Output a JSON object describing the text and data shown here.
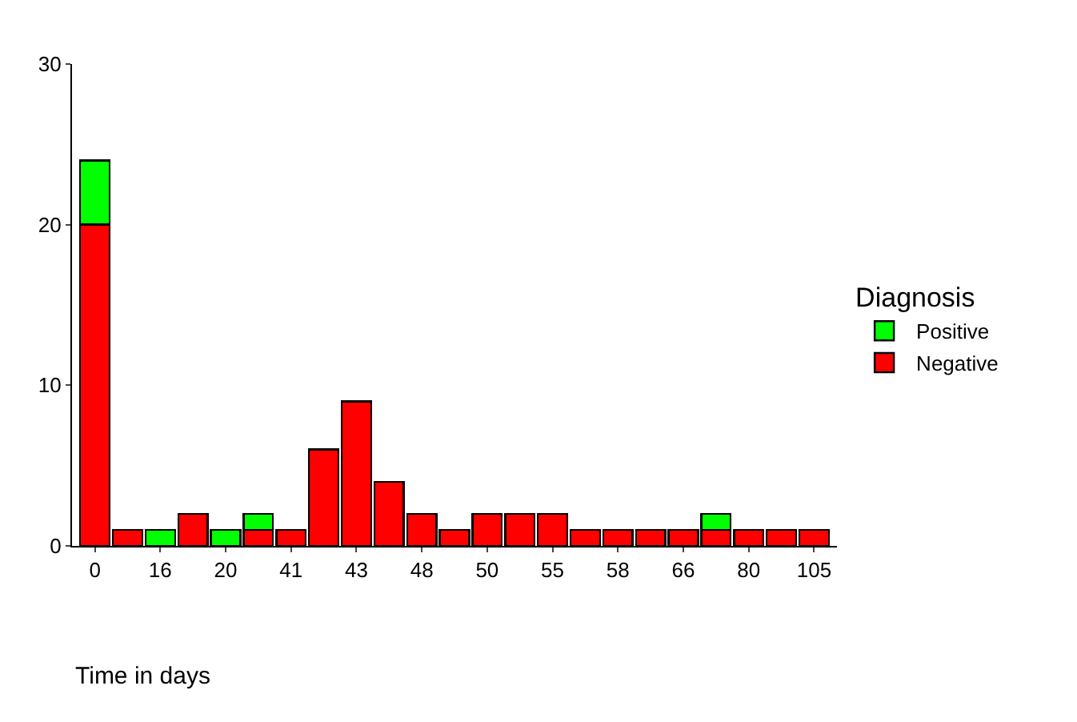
{
  "chart_data": {
    "type": "bar",
    "stacked": true,
    "xlabel": "Time in days",
    "legend_title": "Diagnosis",
    "legend": "right",
    "categories": [
      "0",
      null,
      "16",
      null,
      "20",
      null,
      "41",
      null,
      "43",
      null,
      "48",
      null,
      "50",
      null,
      "55",
      null,
      "58",
      null,
      "66",
      null,
      "80",
      null,
      "105"
    ],
    "series": [
      {
        "name": "Negative",
        "color": "#ff0000",
        "values": [
          20,
          1,
          0,
          2,
          0,
          1,
          1,
          6,
          9,
          4,
          2,
          1,
          2,
          2,
          2,
          1,
          1,
          1,
          1,
          1,
          1,
          1,
          1
        ]
      },
      {
        "name": "Positive",
        "color": "#00ff00",
        "values": [
          4,
          0,
          1,
          0,
          1,
          1,
          0,
          0,
          0,
          0,
          0,
          0,
          0,
          0,
          0,
          0,
          0,
          0,
          0,
          1,
          0,
          0,
          0
        ]
      }
    ],
    "ylim": [
      0,
      30
    ],
    "yticks": [
      0,
      10,
      20,
      30
    ],
    "grid": false
  }
}
